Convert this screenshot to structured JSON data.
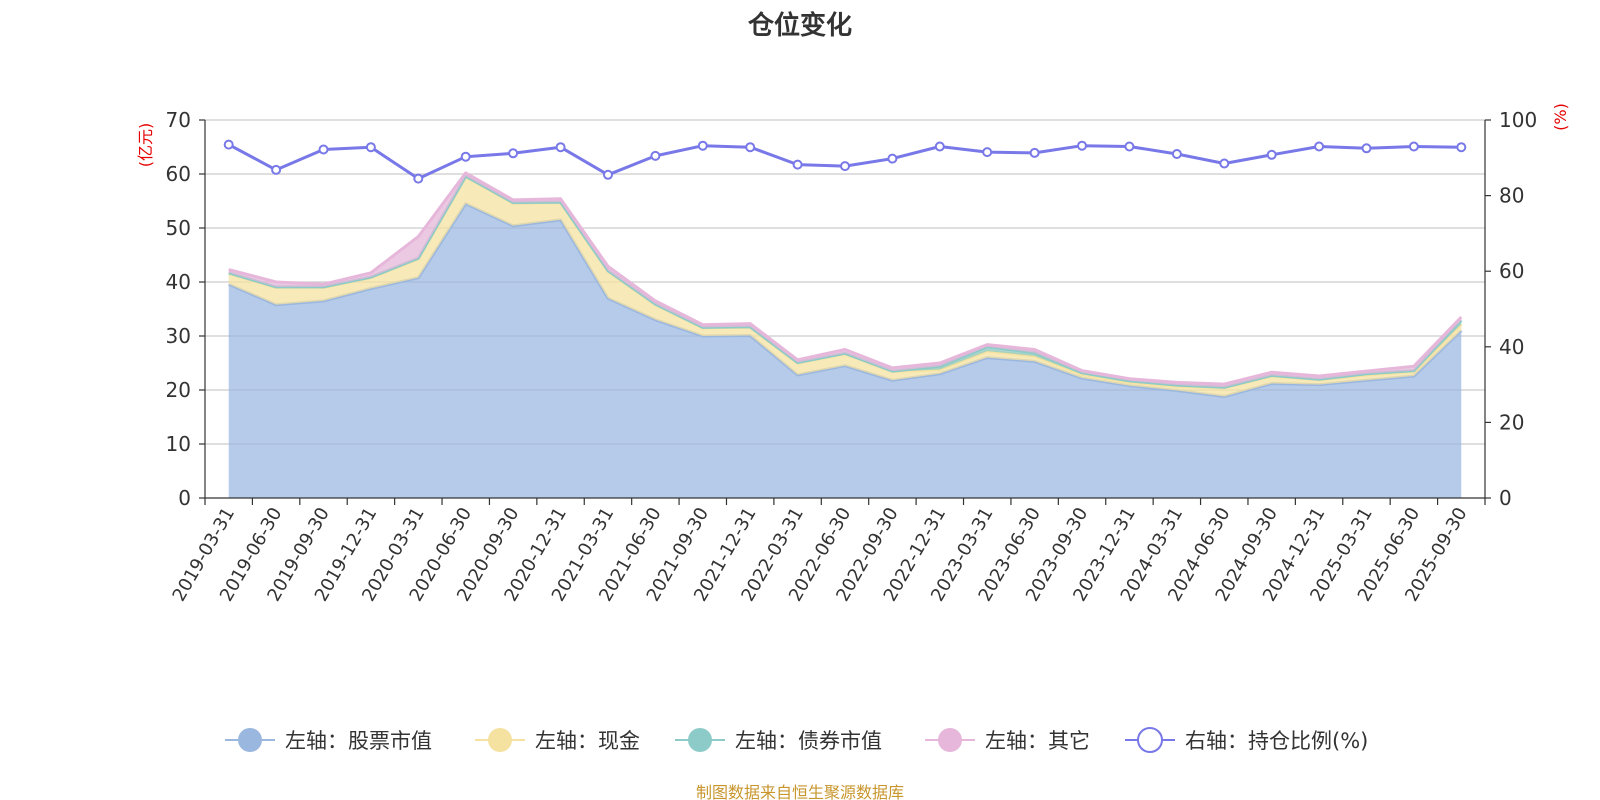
{
  "chart_data": {
    "type": "area",
    "title": "仓位变化",
    "left_axis_unit": "(亿元)",
    "right_axis_unit": "(%)",
    "left_ylim": [
      0,
      70
    ],
    "left_ticks": [
      0,
      10,
      20,
      30,
      40,
      50,
      60,
      70
    ],
    "right_ylim": [
      0,
      100
    ],
    "right_ticks": [
      0,
      20,
      40,
      60,
      80,
      100
    ],
    "grid": true,
    "legend_position": "bottom",
    "categories": [
      "2019-03-31",
      "2019-06-30",
      "2019-09-30",
      "2019-12-31",
      "2020-03-31",
      "2020-06-30",
      "2020-09-30",
      "2020-12-31",
      "2021-03-31",
      "2021-06-30",
      "2021-09-30",
      "2021-12-31",
      "2022-03-31",
      "2022-06-30",
      "2022-09-30",
      "2022-12-31",
      "2023-03-31",
      "2023-06-30",
      "2023-09-30",
      "2023-12-31",
      "2024-03-31",
      "2024-06-30",
      "2024-09-30",
      "2024-12-31",
      "2025-03-31",
      "2025-06-30",
      "2025-09-30"
    ],
    "series": [
      {
        "name": "左轴：股票市值",
        "axis": "left",
        "kind": "area",
        "color": "#9ab7e0",
        "values": [
          39.6,
          35.8,
          36.5,
          38.8,
          40.8,
          54.5,
          50.4,
          51.5,
          37.0,
          33.0,
          30.0,
          30.1,
          22.8,
          24.5,
          21.8,
          23.0,
          26.0,
          25.3,
          22.2,
          20.8,
          19.9,
          18.8,
          21.2,
          21.0,
          21.8,
          22.6,
          31.0
        ]
      },
      {
        "name": "左轴：现金",
        "axis": "left",
        "kind": "area",
        "color": "#f5e2a0",
        "values": [
          2.0,
          3.2,
          2.5,
          2.0,
          3.5,
          5.0,
          4.2,
          3.2,
          5.0,
          2.8,
          1.5,
          1.5,
          2.2,
          2.2,
          1.6,
          0.8,
          1.2,
          1.0,
          0.7,
          0.6,
          0.8,
          1.6,
          1.4,
          0.9,
          1.0,
          0.8,
          1.2
        ]
      },
      {
        "name": "左轴：债券市值",
        "axis": "left",
        "kind": "area",
        "color": "#8ccbc8",
        "values": [
          0.1,
          0.1,
          0.1,
          0.1,
          0.1,
          0.1,
          0.1,
          0.1,
          0.1,
          0.1,
          0.1,
          0.1,
          0.1,
          0.1,
          0.1,
          0.6,
          0.8,
          0.6,
          0.3,
          0.3,
          0.2,
          0.1,
          0.1,
          0.1,
          0.2,
          0.2,
          0.7
        ]
      },
      {
        "name": "左轴：其它",
        "axis": "left",
        "kind": "area",
        "color": "#e6b7da",
        "values": [
          0.6,
          0.9,
          0.5,
          0.8,
          4.0,
          0.6,
          0.5,
          0.6,
          0.8,
          0.6,
          0.5,
          0.6,
          0.5,
          0.7,
          0.6,
          0.6,
          0.4,
          0.6,
          0.4,
          0.4,
          0.5,
          0.6,
          0.6,
          0.6,
          0.5,
          0.8,
          0.6
        ]
      },
      {
        "name": "右轴：持仓比例(%)",
        "axis": "right",
        "kind": "line",
        "color": "#7878e8",
        "values": [
          93.5,
          86.8,
          92.2,
          92.8,
          84.5,
          90.3,
          91.2,
          92.8,
          85.5,
          90.5,
          93.2,
          92.8,
          88.2,
          87.8,
          89.8,
          93.0,
          91.5,
          91.3,
          93.2,
          93.0,
          91.0,
          88.5,
          90.8,
          93.0,
          92.5,
          93.0,
          92.8
        ]
      }
    ],
    "source_note": "制图数据来自恒生聚源数据库"
  }
}
